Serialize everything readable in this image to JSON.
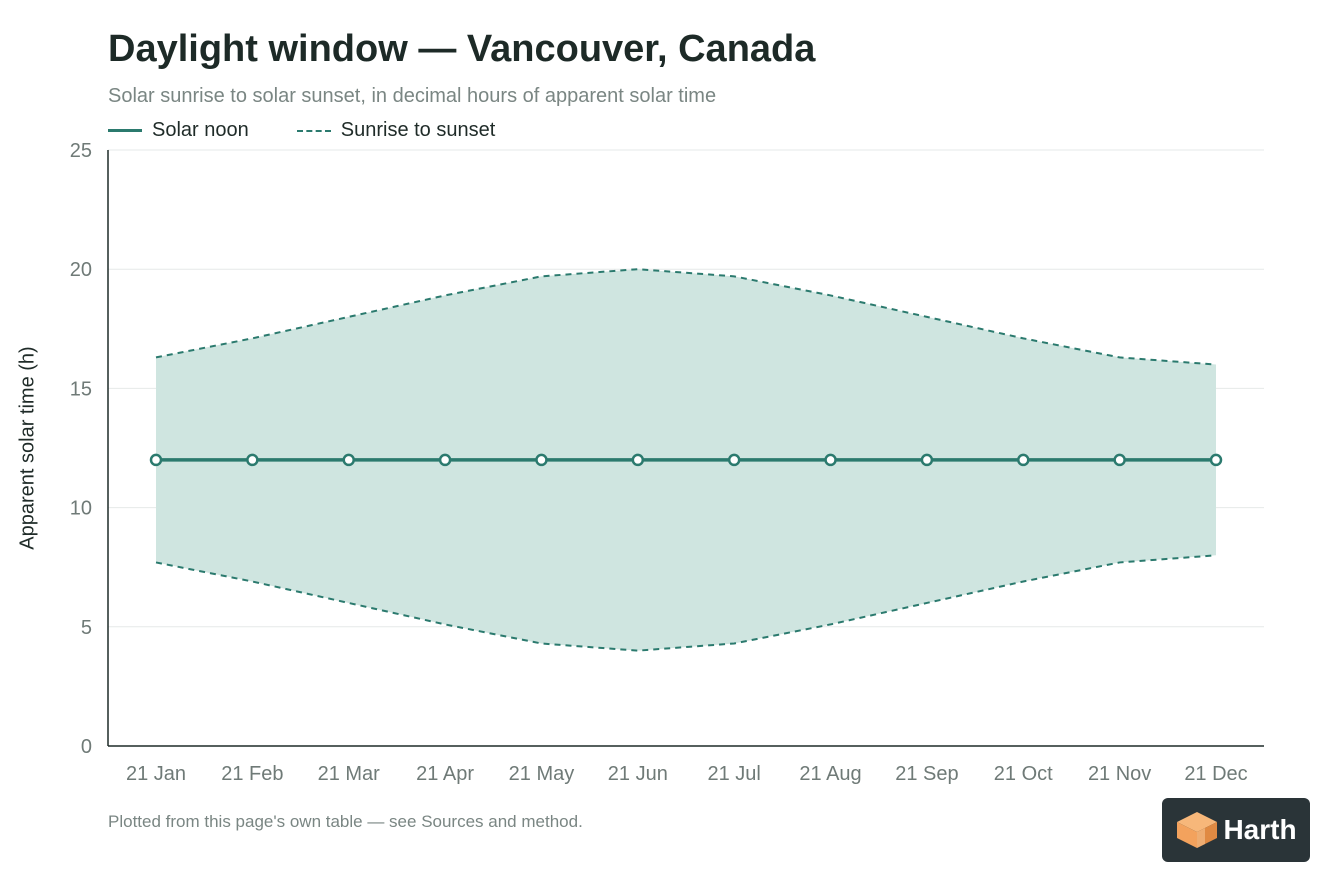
{
  "header": {
    "title": "Daylight window — Vancouver, Canada",
    "subtitle": "Solar sunrise to solar sunset, in decimal hours of apparent solar time"
  },
  "legend": {
    "noon_label": "Solar noon",
    "range_label": "Sunrise to sunset"
  },
  "footnote": "Plotted from this page's own table — see Sources and method.",
  "logo": {
    "text": "Harth",
    "icon": "cube-logo-icon"
  },
  "colors": {
    "accent": "#2b7a6e",
    "band_fill": "#cfe5e0",
    "axis": "#1f2b28",
    "grid": "#e6e9e8",
    "tick_text": "#6f7a77",
    "logo_bg": "#2a3438",
    "logo_orange": "#f3a25d"
  },
  "chart_data": {
    "type": "line",
    "title": "Daylight window — Vancouver, Canada",
    "subtitle": "Solar sunrise to solar sunset, in decimal hours of apparent solar time",
    "xlabel": "",
    "ylabel": "Apparent solar time (h)",
    "categories": [
      "21 Jan",
      "21 Feb",
      "21 Mar",
      "21 Apr",
      "21 May",
      "21 Jun",
      "21 Jul",
      "21 Aug",
      "21 Sep",
      "21 Oct",
      "21 Nov",
      "21 Dec"
    ],
    "ylim": [
      0,
      25
    ],
    "yticks": [
      0,
      5,
      10,
      15,
      20,
      25
    ],
    "grid": true,
    "legend_position": "top-left",
    "series": [
      {
        "name": "Solar noon",
        "style": "solid-with-markers",
        "values": [
          12,
          12,
          12,
          12,
          12,
          12,
          12,
          12,
          12,
          12,
          12,
          12
        ]
      },
      {
        "name": "Sunrise to sunset",
        "style": "dashed-band",
        "sunrise": [
          7.7,
          6.9,
          6.0,
          5.1,
          4.3,
          4.0,
          4.3,
          5.1,
          6.0,
          6.9,
          7.7,
          8.0
        ],
        "sunset": [
          16.3,
          17.1,
          18.0,
          18.9,
          19.7,
          20.0,
          19.7,
          18.9,
          18.0,
          17.1,
          16.3,
          16.0
        ]
      }
    ]
  }
}
